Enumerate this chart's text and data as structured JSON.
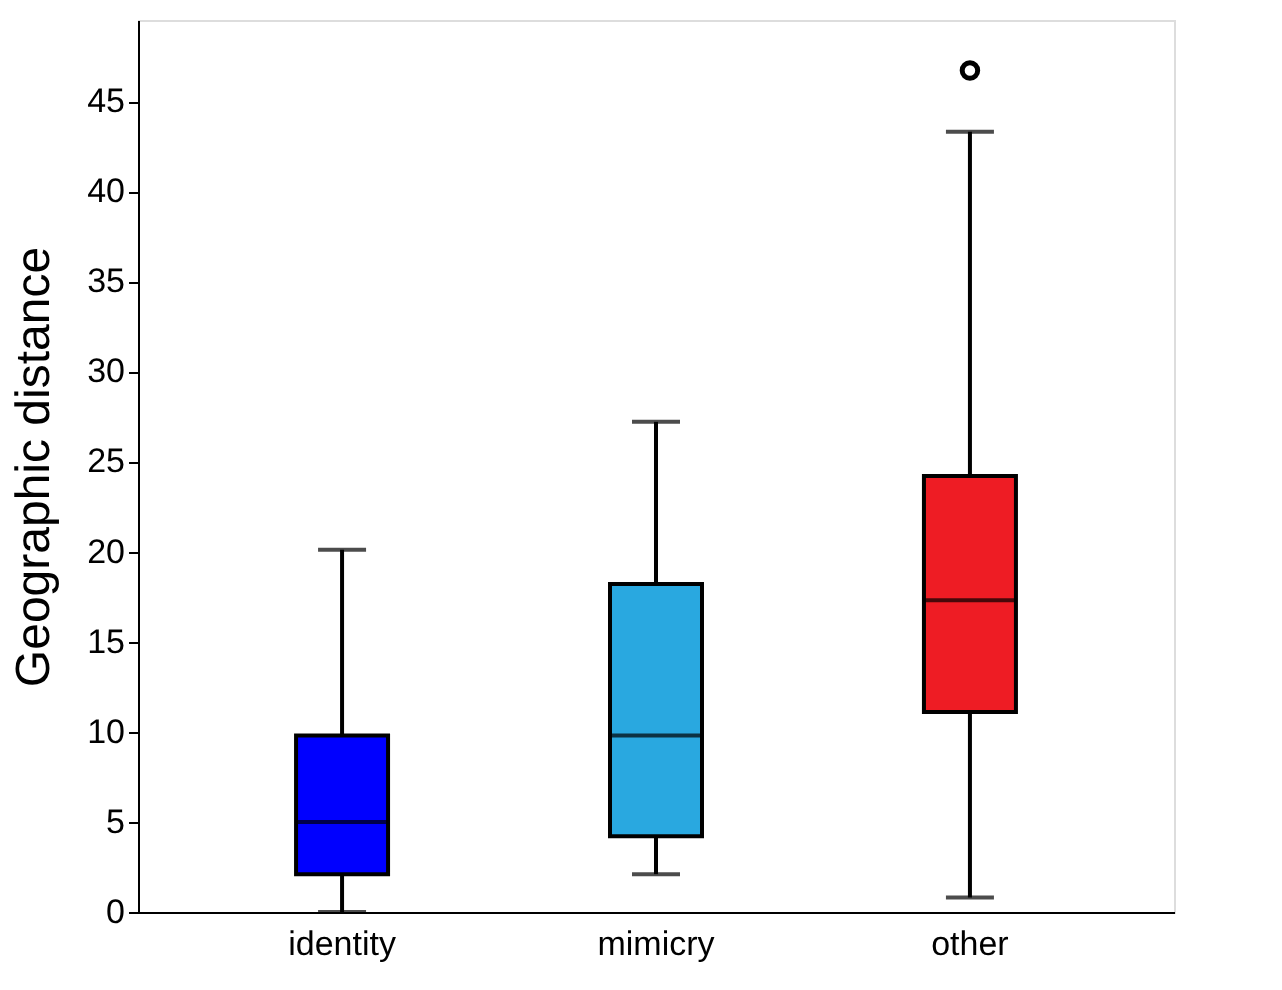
{
  "chart_data": {
    "type": "box",
    "ylabel": "Geographic distance",
    "categories": [
      "identity",
      "mimicry",
      "other"
    ],
    "boxes": [
      {
        "low": 0,
        "q1": 2.1,
        "median": 5,
        "q3": 9.8,
        "high": 20.1
      },
      {
        "low": 2.1,
        "q1": 4.2,
        "median": 9.8,
        "q3": 18.2,
        "high": 27.2
      },
      {
        "low": 0.8,
        "q1": 11.1,
        "median": 17.3,
        "q3": 24.2,
        "high": 43.3,
        "outliers": [
          46.7
        ]
      }
    ],
    "colors": [
      "#0000ff",
      "#29a8e0",
      "#ee1c24"
    ],
    "ylim": [
      0,
      49.5
    ],
    "yticks": [
      0,
      5,
      10,
      15,
      20,
      25,
      30,
      35,
      40,
      45
    ],
    "grid": false,
    "legend": false
  }
}
